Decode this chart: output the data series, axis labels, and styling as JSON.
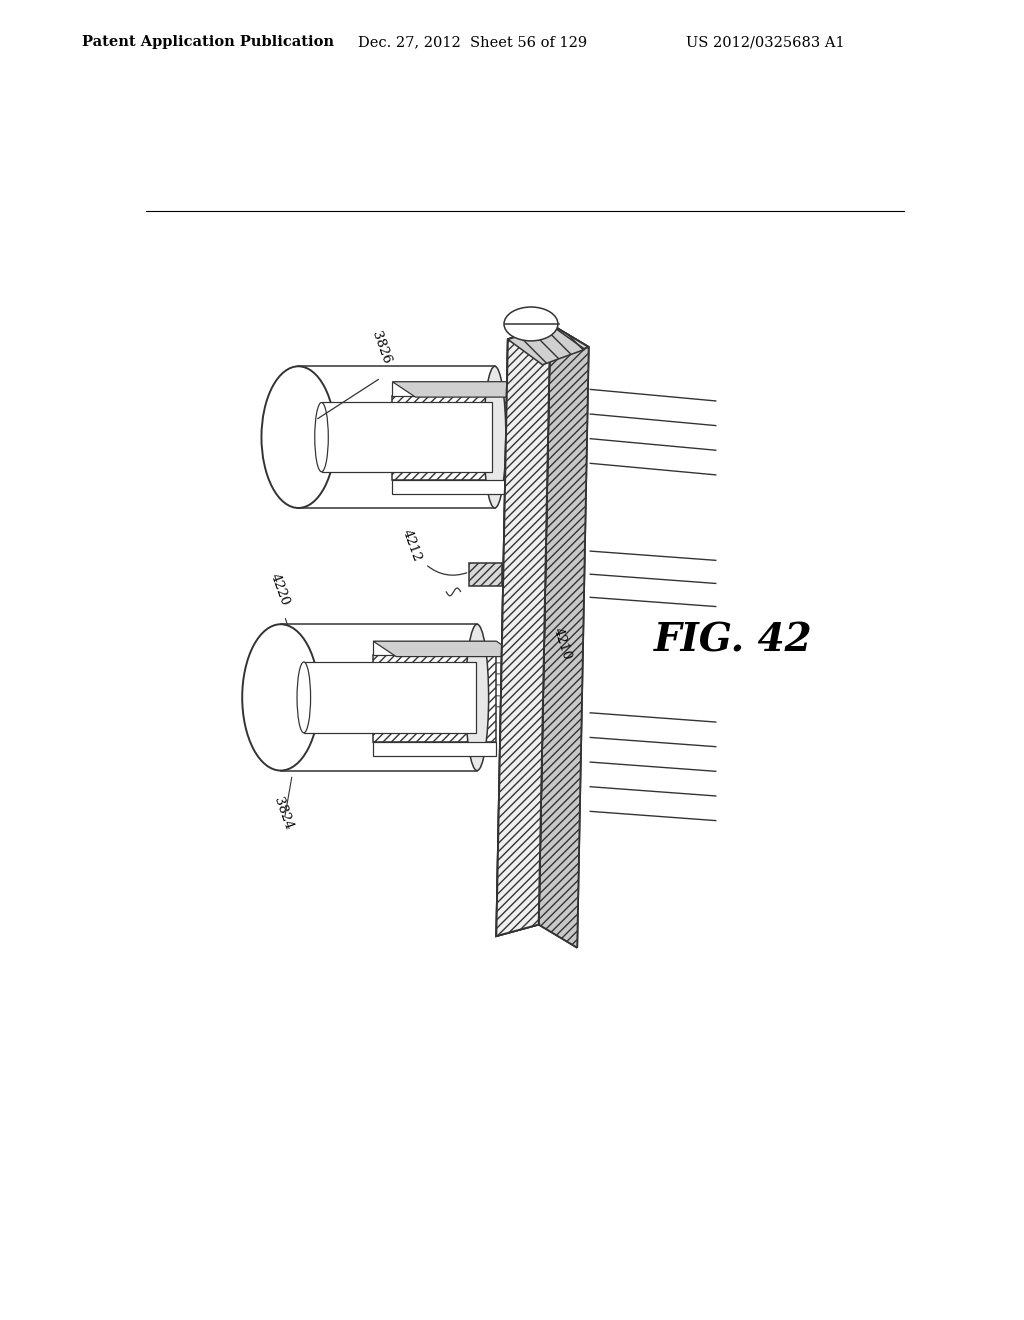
{
  "header_left": "Patent Application Publication",
  "header_center": "Dec. 27, 2012  Sheet 56 of 129",
  "header_right": "US 2012/0325683 A1",
  "fig_label": "FIG. 42",
  "background_color": "#ffffff",
  "line_color": "#333333",
  "header_fontsize": 10.5,
  "fig_label_fontsize": 28,
  "lw": 1.1
}
